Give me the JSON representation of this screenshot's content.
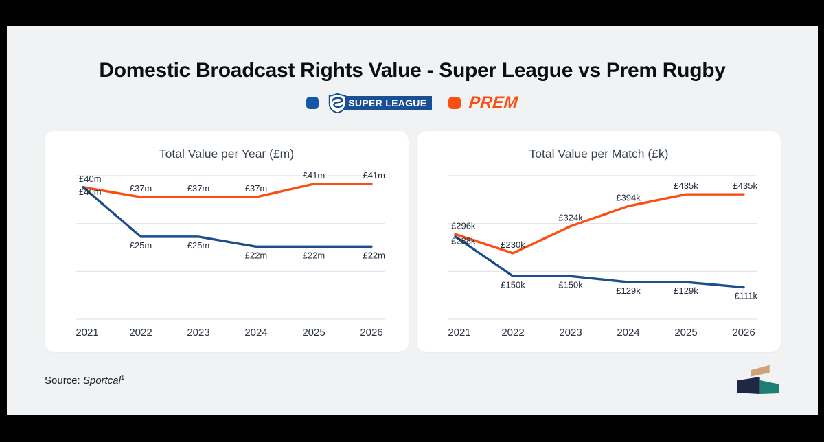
{
  "frame": {
    "bar_color": "#000000",
    "canvas_bg": "#f0f2f4"
  },
  "header": {
    "title": "Domestic Broadcast Rights Value - Super League vs Prem Rugby"
  },
  "legend": {
    "super_league": {
      "label": "SUPER LEAGUE",
      "swatch_color": "#1457a8",
      "logo_blue": "#1a4f96"
    },
    "prem": {
      "label": "PREM",
      "swatch_color": "#fa4e12",
      "text_color": "#fa4e12"
    }
  },
  "chart_data": [
    {
      "type": "line",
      "title": "Total Value per Year (£m)",
      "x": [
        "2021",
        "2022",
        "2023",
        "2024",
        "2025",
        "2026"
      ],
      "ylim": [
        0,
        43.5
      ],
      "grid": true,
      "gridline_count": 4,
      "legend_position": "top-of-page",
      "series": [
        {
          "name": "Super League",
          "color": "#1c4e8c",
          "label_side": "below",
          "values": [
            40,
            25,
            25,
            22,
            22,
            22
          ],
          "labels": [
            "£40m",
            "£25m",
            "£25m",
            "£22m",
            "£22m",
            "£22m"
          ]
        },
        {
          "name": "Prem",
          "color": "#fa4e12",
          "label_side": "above",
          "values": [
            40,
            37,
            37,
            37,
            41,
            41
          ],
          "labels": [
            "£40m",
            "£37m",
            "£37m",
            "£37m",
            "£41m",
            "£41m"
          ]
        }
      ]
    },
    {
      "type": "line",
      "title": "Total Value per Match (£k)",
      "x": [
        "2021",
        "2022",
        "2023",
        "2024",
        "2025",
        "2026"
      ],
      "ylim": [
        0,
        500
      ],
      "grid": true,
      "gridline_count": 4,
      "legend_position": "top-of-page",
      "series": [
        {
          "name": "Super League",
          "color": "#1c4e8c",
          "label_side": "below",
          "values": [
            288,
            150,
            150,
            129,
            129,
            111
          ],
          "labels": [
            "£288k",
            "£150k",
            "£150k",
            "£129k",
            "£129k",
            "£111k"
          ]
        },
        {
          "name": "Prem",
          "color": "#fa4e12",
          "label_side": "above",
          "values": [
            296,
            230,
            324,
            394,
            435,
            435
          ],
          "labels": [
            "£296k",
            "£230k",
            "£324k",
            "£394k",
            "£435k",
            "£435k"
          ]
        }
      ]
    }
  ],
  "footer": {
    "source_prefix": "Source:",
    "source_name": "Sportcal",
    "source_sup": "1",
    "logo": {
      "tan": "#d0a377",
      "navy": "#1e2744",
      "teal": "#1e7e74"
    }
  },
  "style_tokens": {
    "gridline_color": "#e0e3e8",
    "data_label_color": "#232d3d",
    "axis_label_color": "#2a3240"
  }
}
